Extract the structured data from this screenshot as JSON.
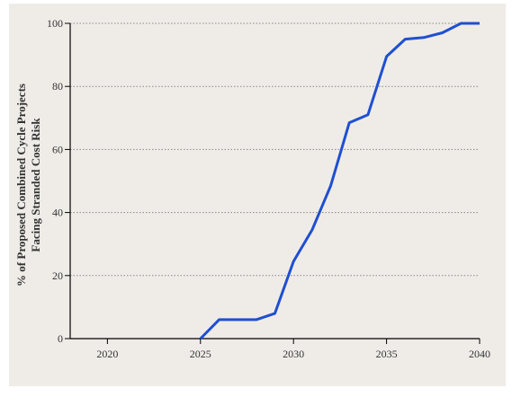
{
  "chart_data": {
    "type": "line",
    "title": "",
    "xlabel": "",
    "ylabel_line1": "% of Proposed Combined Cycle Projects",
    "ylabel_line2": "Facing Stranded Cost Risk",
    "xlim": [
      2018,
      2040
    ],
    "ylim": [
      0,
      100
    ],
    "x_ticks": [
      2020,
      2025,
      2030,
      2035,
      2040
    ],
    "y_ticks": [
      0,
      20,
      40,
      60,
      80,
      100
    ],
    "grid": "horizontal-dotted",
    "series": [
      {
        "x": [
          2025,
          2026,
          2027,
          2028,
          2029,
          2030,
          2031,
          2032,
          2033,
          2034,
          2035,
          2036,
          2037,
          2038,
          2039,
          2040
        ],
        "y": [
          0,
          6,
          6,
          6,
          8,
          24.5,
          34.5,
          48.5,
          68.5,
          71,
          89.5,
          95,
          95.5,
          97,
          100,
          100
        ]
      }
    ],
    "colors": {
      "line": "#1f4fd1",
      "background": "#efece8",
      "grid": "#888888",
      "axis": "#000000"
    }
  }
}
